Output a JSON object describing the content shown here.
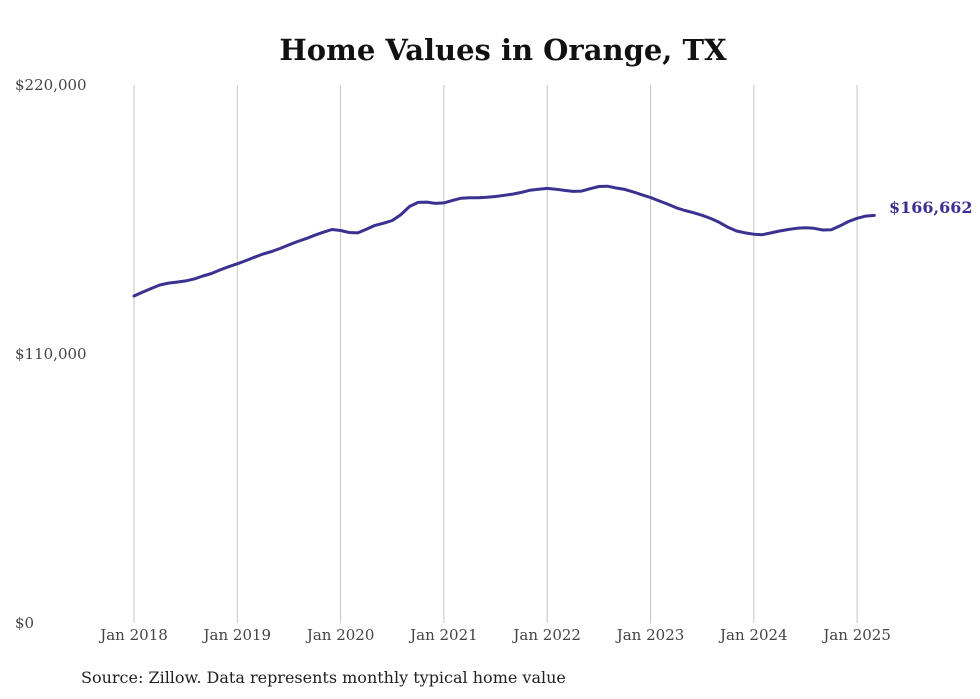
{
  "chart_data": {
    "type": "line",
    "title": "Home Values in Orange, TX",
    "source": "Source: Zillow. Data represents monthly typical home value",
    "xlabel": "",
    "ylabel": "",
    "ylim": [
      0,
      220000
    ],
    "y_ticks": [
      "$0",
      "$110,000",
      "$220,000"
    ],
    "x_ticks": [
      "Jan 2018",
      "Jan 2019",
      "Jan 2020",
      "Jan 2021",
      "Jan 2022",
      "Jan 2023",
      "Jan 2024",
      "Jan 2025"
    ],
    "grid": "vertical",
    "end_label": "$166,662",
    "line_color": "#3b3190",
    "series": [
      {
        "x": [
          "2018-01",
          "2018-02",
          "2018-03",
          "2018-04",
          "2018-05",
          "2018-06",
          "2018-07",
          "2018-08",
          "2018-09",
          "2018-10",
          "2018-11",
          "2018-12",
          "2019-01",
          "2019-02",
          "2019-03",
          "2019-04",
          "2019-05",
          "2019-06",
          "2019-07",
          "2019-08",
          "2019-09",
          "2019-10",
          "2019-11",
          "2019-12",
          "2020-01",
          "2020-02",
          "2020-03",
          "2020-04",
          "2020-05",
          "2020-06",
          "2020-07",
          "2020-08",
          "2020-09",
          "2020-10",
          "2020-11",
          "2020-12",
          "2021-01",
          "2021-02",
          "2021-03",
          "2021-04",
          "2021-05",
          "2021-06",
          "2021-07",
          "2021-08",
          "2021-09",
          "2021-10",
          "2021-11",
          "2021-12",
          "2022-01",
          "2022-02",
          "2022-03",
          "2022-04",
          "2022-05",
          "2022-06",
          "2022-07",
          "2022-08",
          "2022-09",
          "2022-10",
          "2022-11",
          "2022-12",
          "2023-01",
          "2023-02",
          "2023-03",
          "2023-04",
          "2023-05",
          "2023-06",
          "2023-07",
          "2023-08",
          "2023-09",
          "2023-10",
          "2023-11",
          "2023-12",
          "2024-01",
          "2024-02",
          "2024-03",
          "2024-04",
          "2024-05",
          "2024-06",
          "2024-07",
          "2024-08",
          "2024-09",
          "2024-10",
          "2024-11",
          "2024-12",
          "2025-01",
          "2025-02",
          "2025-03"
        ],
        "values": [
          133700,
          135300,
          136800,
          138200,
          139000,
          139400,
          139900,
          140700,
          141900,
          142900,
          144400,
          145700,
          146900,
          148200,
          149600,
          150900,
          151900,
          153200,
          154600,
          156000,
          157200,
          158600,
          159800,
          160900,
          160500,
          159700,
          159500,
          161000,
          162600,
          163500,
          164600,
          167000,
          170300,
          172000,
          172100,
          171600,
          171800,
          172800,
          173700,
          173900,
          173900,
          174100,
          174400,
          174900,
          175400,
          176100,
          177000,
          177400,
          177700,
          177400,
          176900,
          176500,
          176600,
          177600,
          178500,
          178600,
          177900,
          177300,
          176300,
          175100,
          174000,
          172600,
          171300,
          169800,
          168700,
          167800,
          166700,
          165400,
          163800,
          161800,
          160300,
          159500,
          159000,
          158800,
          159500,
          160300,
          160900,
          161400,
          161600,
          161400,
          160700,
          160800,
          162400,
          164200,
          165500,
          166400,
          166662
        ]
      }
    ]
  }
}
